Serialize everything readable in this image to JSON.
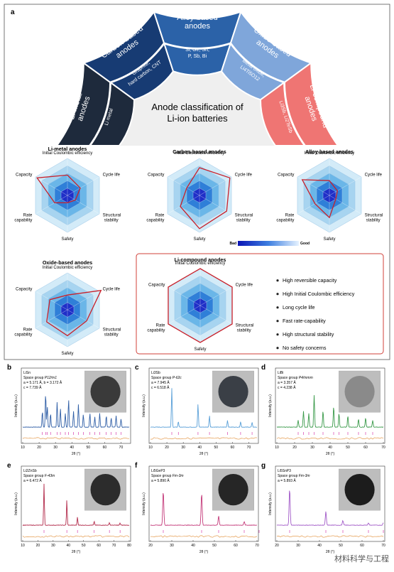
{
  "panel_a": {
    "label": "a",
    "center_title_line1": "Anode classification of",
    "center_title_line2": "Li-ion batteries",
    "categories": [
      {
        "name": "Li-metal anodes",
        "members": "Li metal",
        "color": "#1e2a3c"
      },
      {
        "name": "Carbon-based anodes",
        "members_line1": "Graphite,",
        "members_line2": "hard carbon, CNT",
        "color": "#173b73"
      },
      {
        "name": "Alloy-based anodes",
        "members_line1": "Si, Ge, Sn,",
        "members_line2": "P, Sb, Bi",
        "color": "#2b62a8"
      },
      {
        "name": "Oxide-based anodes",
        "members_line1": "Metal oxide,",
        "members_line2": "Li4Ti5O12",
        "color": "#7fa6da"
      },
      {
        "name": "Li-compound anodes",
        "members": "Li3Sb, Li2TeSb",
        "color": "#ef7573"
      }
    ],
    "radar_axes": [
      "Initial Coulombic efficiency",
      "Cycle life",
      "Structural stability",
      "Safety",
      "Rate capability",
      "Capacity"
    ],
    "radar_axes_display": {
      "top": "Initial Coulombic efficiency",
      "upper_right": "Cycle life",
      "lower_right_1": "Structural",
      "lower_right_2": "stability",
      "bottom": "Safety",
      "lower_left_1": "Rate",
      "lower_left_2": "capability",
      "upper_left": "Capacity"
    },
    "radars": [
      {
        "title": "Li-metal anodes",
        "values": [
          0.55,
          0.4,
          0.25,
          0.2,
          0.4,
          0.95
        ]
      },
      {
        "title": "Carbon-based anodes",
        "values": [
          0.75,
          0.95,
          0.85,
          0.9,
          0.6,
          0.4
        ]
      },
      {
        "title": "Alloy-based anodes",
        "values": [
          0.4,
          0.25,
          0.2,
          0.6,
          0.45,
          0.85
        ]
      },
      {
        "title": "Oxide-based anodes",
        "values": [
          0.4,
          1.05,
          0.6,
          0.7,
          0.65,
          0.55
        ]
      },
      {
        "title": "Li-compound anodes",
        "values": [
          1.0,
          1.0,
          1.0,
          1.0,
          1.0,
          1.0
        ]
      }
    ],
    "legend": {
      "bad": "Bad",
      "good": "Good"
    },
    "bullets": [
      "High reversible capacity",
      "High Initial Coulombic efficiency",
      "Long cycle life",
      "Fast rate-capability",
      "High structural stability",
      "No safety concerns"
    ]
  },
  "xrd_panels": [
    {
      "label": "b",
      "compound": "LiSn",
      "space_group_prefix": "Space group ",
      "space_group": "P12/m1",
      "params": [
        "a = 5.171 Å, b = 3.172 Å",
        "c = 7.739 Å"
      ],
      "xticks": [
        10,
        20,
        30,
        40,
        50,
        60,
        70
      ],
      "color": "#2f5ea6",
      "ylabel": "Intensity (a.u.)",
      "xlabel": "2θ (°)"
    },
    {
      "label": "c",
      "compound": "Li3Sb",
      "space_group_prefix": "Space group ",
      "space_group": "P-62c",
      "params": [
        "a = 7.945 Å",
        "c = 6.518 Å"
      ],
      "xticks": [
        10,
        20,
        30,
        40,
        50,
        60,
        70
      ],
      "color": "#5aa0d8",
      "ylabel": "Intensity (a.u.)",
      "xlabel": "2θ (°)"
    },
    {
      "label": "d",
      "compound": "LiBi",
      "space_group_prefix": "Space group ",
      "space_group": "P4/mmm",
      "params": [
        "a = 3.357 Å",
        "c = 4.238 Å"
      ],
      "xticks": [
        10,
        20,
        30,
        40,
        50,
        60,
        70
      ],
      "color": "#3a9a4a",
      "ylabel": "Intensity (a.u.)",
      "xlabel": "2θ (°)"
    },
    {
      "label": "e",
      "compound": "Li2ZnSb",
      "space_group_prefix": "Space group ",
      "space_group": "F-43m",
      "params": [
        "a = 6.472 Å"
      ],
      "xticks": [
        10,
        20,
        30,
        40,
        50,
        60,
        70,
        80
      ],
      "color": "#b22a4a",
      "ylabel": "Intensity (a.u.)",
      "xlabel": "2θ (°)"
    },
    {
      "label": "f",
      "compound": "Li5GeP3",
      "space_group_prefix": "Space group ",
      "space_group": "Fm-3m",
      "params": [
        "a = 5.890 Å"
      ],
      "xticks": [
        20,
        30,
        40,
        50,
        60,
        70
      ],
      "color": "#c43a7a",
      "ylabel": "Intensity (a.u.)",
      "xlabel": "2θ (°)"
    },
    {
      "label": "g",
      "compound": "Li5SnP3",
      "space_group_prefix": "Space group ",
      "space_group": "Fm-3m",
      "params": [
        "a = 5.893 Å"
      ],
      "xticks": [
        20,
        30,
        40,
        50,
        60,
        70
      ],
      "color": "#a25bc8",
      "ylabel": "Intensity (a.u.)",
      "xlabel": "2θ (°)"
    }
  ],
  "watermark": "材料科学与工程"
}
